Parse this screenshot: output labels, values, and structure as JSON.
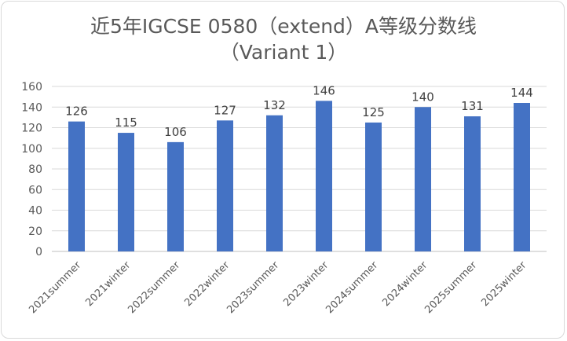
{
  "chart_data": {
    "type": "bar",
    "title_line1": "近5年IGCSE 0580（extend）A等级分数线",
    "title_line2": "（Variant 1）",
    "categories": [
      "2021summer",
      "2021winter",
      "2022summer",
      "2022winter",
      "2023summer",
      "2023winter",
      "2024summer",
      "2024winter",
      "2025summer",
      "2025winter"
    ],
    "values": [
      126,
      115,
      106,
      127,
      132,
      146,
      125,
      140,
      131,
      144
    ],
    "ylim": [
      0,
      160
    ],
    "yticks": [
      "0",
      "20",
      "40",
      "60",
      "80",
      "100",
      "120",
      "140",
      "160"
    ],
    "bar_color": "#4472c4",
    "grid": true,
    "data_labels": true,
    "legend": "none"
  }
}
